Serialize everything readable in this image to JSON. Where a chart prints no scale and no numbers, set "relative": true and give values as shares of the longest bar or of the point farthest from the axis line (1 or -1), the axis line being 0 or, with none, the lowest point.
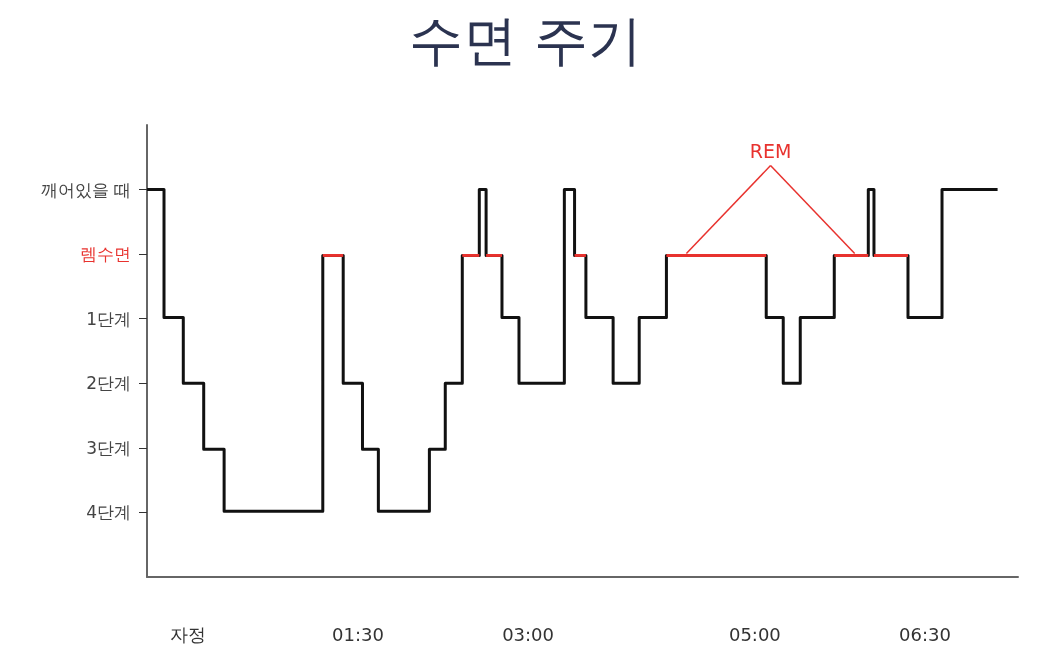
{
  "chart_data": {
    "type": "step",
    "title": "수면 주기",
    "relative": true,
    "xlim": [
      -0.36,
      7.32
    ],
    "xticks": [
      {
        "value": 0,
        "label": "자정"
      },
      {
        "value": 1.5,
        "label": "01:30"
      },
      {
        "value": 3,
        "label": "03:00"
      },
      {
        "value": 5,
        "label": "05:00"
      },
      {
        "value": 6.5,
        "label": "06:30"
      }
    ],
    "y_categories": [
      "깨어있을 때",
      "렘수면",
      "1단계",
      "2단계",
      "3단계",
      "4단계"
    ],
    "series": [
      {
        "color": "#111111",
        "x": [
          -0.36,
          -0.21,
          -0.04,
          0.14,
          0.32,
          1.19,
          1.37,
          1.54,
          1.68,
          2.13,
          2.27,
          2.42,
          2.57,
          2.63,
          2.77,
          2.92,
          3.32,
          3.41,
          3.51,
          3.75,
          3.98,
          4.22,
          5.1,
          5.25,
          5.4,
          5.7,
          6.0,
          6.05,
          6.35,
          6.65,
          7.14
        ],
        "values": [
          1,
          0.67,
          0.5,
          0.33,
          0.17,
          0.83,
          0.5,
          0.33,
          0.17,
          0.33,
          0.5,
          0.83,
          1,
          0.83,
          0.67,
          0.5,
          1,
          0.83,
          0.67,
          0.5,
          0.67,
          0.83,
          0.67,
          0.5,
          0.67,
          0.83,
          1,
          0.83,
          0.67,
          1,
          1
        ]
      },
      {
        "type": "line",
        "color": "#e8322e",
        "x": [
          1.19,
          1.37
        ],
        "values": [
          0.83,
          0.83
        ]
      },
      {
        "type": "line",
        "color": "#e8322e",
        "x": [
          2.42,
          2.57
        ],
        "values": [
          0.83,
          0.83
        ]
      },
      {
        "type": "line",
        "color": "#e8322e",
        "x": [
          2.63,
          2.77
        ],
        "values": [
          0.83,
          0.83
        ]
      },
      {
        "type": "line",
        "color": "#e8322e",
        "x": [
          3.41,
          3.51
        ],
        "values": [
          0.83,
          0.83
        ]
      },
      {
        "type": "line",
        "color": "#e8322e",
        "x": [
          4.22,
          5.1
        ],
        "values": [
          0.83,
          0.83
        ]
      },
      {
        "type": "line",
        "color": "#e8322e",
        "x": [
          5.7,
          6.0
        ],
        "values": [
          0.83,
          0.83
        ]
      },
      {
        "type": "line",
        "color": "#e8322e",
        "x": [
          6.05,
          6.35
        ],
        "values": [
          0.83,
          0.83
        ]
      }
    ],
    "annotations": [
      "REM"
    ],
    "grid": false,
    "marker": "none",
    "line_style": "solid"
  }
}
